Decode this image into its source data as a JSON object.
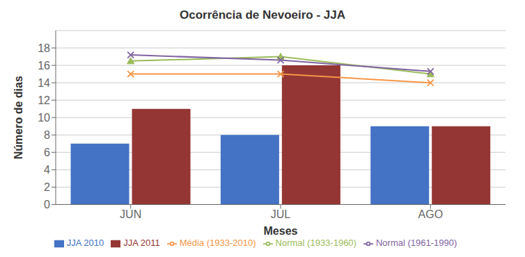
{
  "chart_data": {
    "type": "bar",
    "title": "Ocorrência de Nevoeiro - JJA",
    "xlabel": "Meses",
    "ylabel": "Número de dias",
    "categories": [
      "JUN",
      "JUL",
      "AGO"
    ],
    "series": [
      {
        "name": "JJA 2010",
        "type": "bar",
        "color": "#4472C4",
        "values": [
          7,
          8,
          9
        ]
      },
      {
        "name": "JJA 2011",
        "type": "bar",
        "color": "#943634",
        "values": [
          11,
          16,
          9
        ]
      },
      {
        "name": "Normal (1933-1960)",
        "type": "line",
        "color": "#9BBB59",
        "marker": "triangle",
        "values": [
          16.5,
          17.0,
          15.0
        ]
      },
      {
        "name": "Normal (1961-1990)",
        "type": "line",
        "color": "#8064A2",
        "marker": "x",
        "values": [
          17.2,
          16.6,
          15.3
        ]
      },
      {
        "name": "Média (1933-2010)",
        "type": "line",
        "color": "#F79646",
        "marker": "x",
        "values": [
          15.0,
          15.0,
          14.0
        ]
      }
    ],
    "ylim": [
      0,
      20
    ],
    "yticks": [
      0,
      2,
      4,
      6,
      8,
      10,
      12,
      14,
      16,
      18
    ],
    "grid": true,
    "legend": "bottom"
  }
}
